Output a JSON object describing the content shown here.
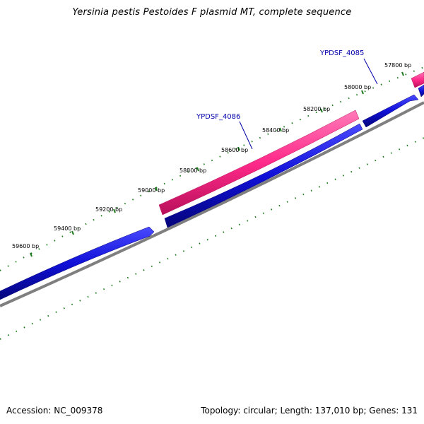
{
  "title": "Yersinia pestis Pestoides F plasmid MT, complete sequence",
  "footer": {
    "accession_label": "Accession:",
    "accession": "NC_009378",
    "topology_label": "Topology:",
    "topology": "circular",
    "length_label": "Length:",
    "length": "137,010 bp",
    "genes_label": "Genes:",
    "genes": "131"
  },
  "ticks": [
    {
      "bp": 57800,
      "label": "57800 bp"
    },
    {
      "bp": 58000,
      "label": "58000 bp"
    },
    {
      "bp": 58200,
      "label": "58200 bp"
    },
    {
      "bp": 58400,
      "label": "58400 bp"
    },
    {
      "bp": 58600,
      "label": "58600 bp"
    },
    {
      "bp": 58800,
      "label": "58800 bp"
    },
    {
      "bp": 59000,
      "label": "59000 bp"
    },
    {
      "bp": 59200,
      "label": "59200 bp"
    },
    {
      "bp": 59400,
      "label": "59400 bp"
    },
    {
      "bp": 59600,
      "label": "59600 bp"
    }
  ],
  "genes": [
    {
      "label": "YPDSF_4085",
      "strand": "reverse"
    },
    {
      "label": "YPDSF_4086",
      "strand": "reverse"
    }
  ],
  "colors": {
    "cds": "#1010d8",
    "highlight": "#ff2a8a",
    "backbone": "#7f7f7f",
    "tick": "#1c7a1c",
    "gene_label": "#0000aa"
  }
}
